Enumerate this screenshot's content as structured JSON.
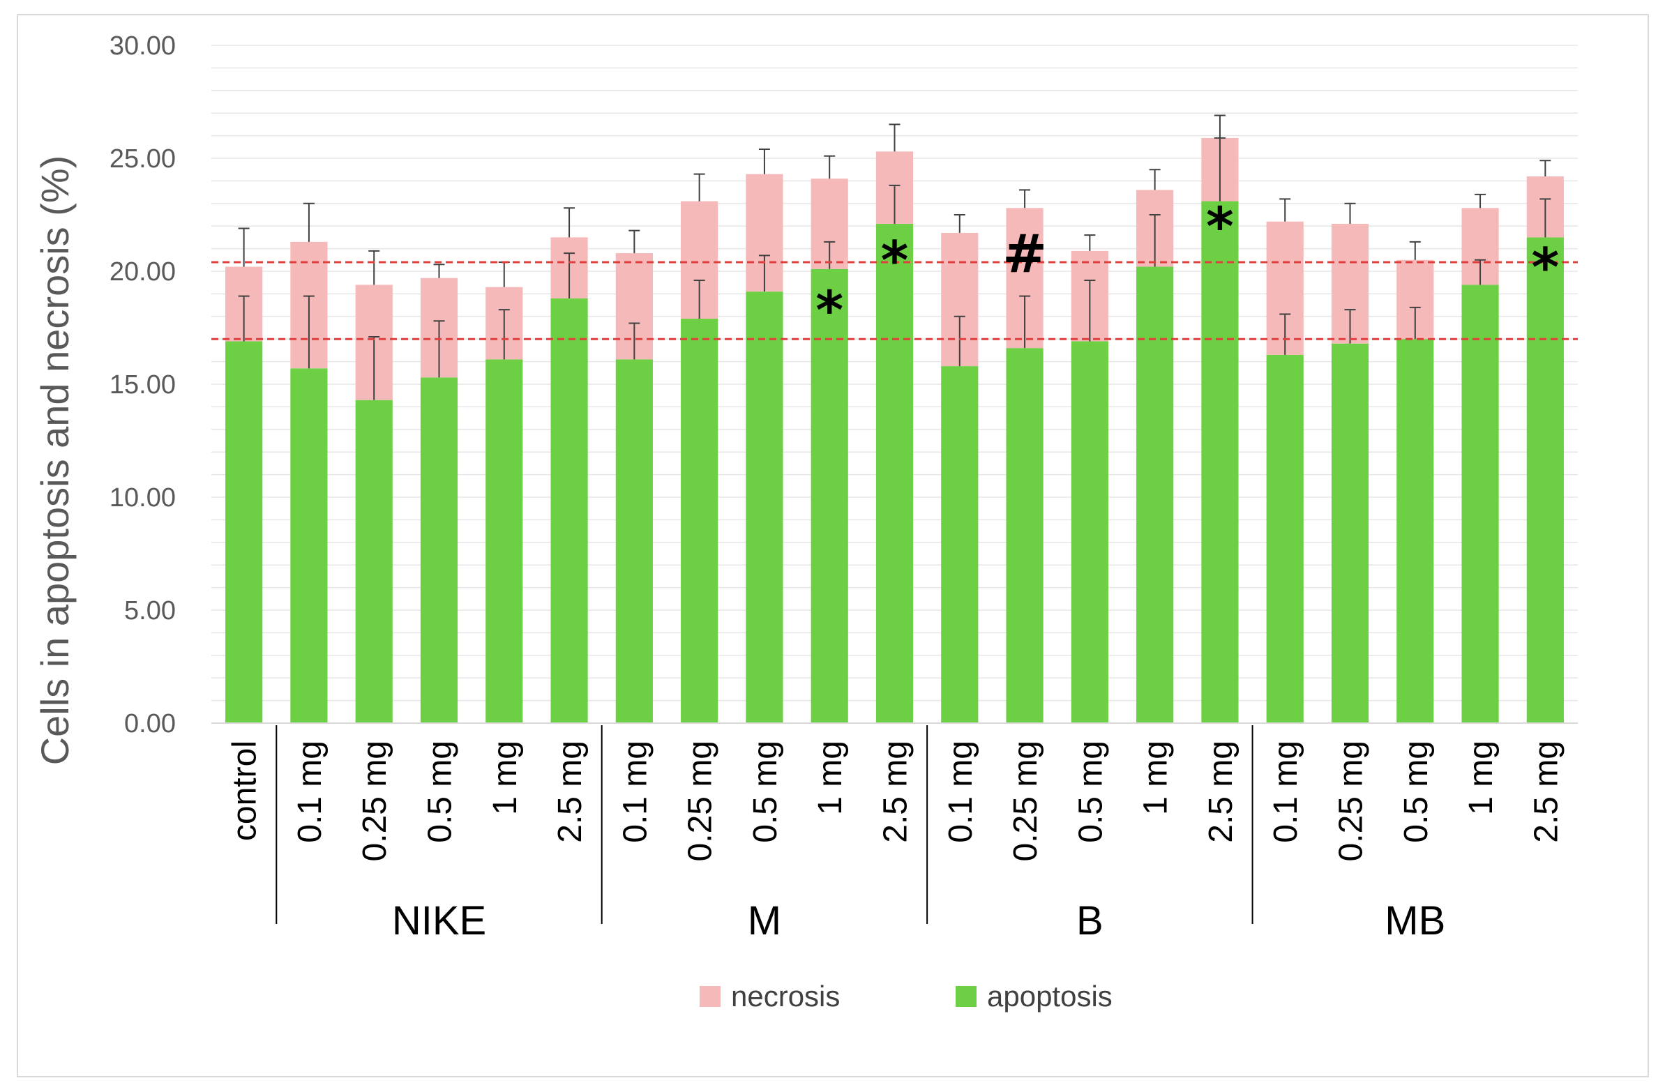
{
  "chart_data": {
    "type": "bar",
    "stacked": true,
    "title": "",
    "ylabel": "Cells in apoptosis and necrosis (%)",
    "xlabel": "",
    "ylim": [
      0,
      30
    ],
    "yticks": [
      "0.00",
      "5.00",
      "10.00",
      "15.00",
      "20.00",
      "25.00",
      "30.00"
    ],
    "grid": true,
    "legend_position": "bottom",
    "colors": {
      "apoptosis": "#6ccf44",
      "necrosis": "#f6b9b9",
      "reference": "#e0403c",
      "error": "#404040"
    },
    "categories": [
      "control",
      "0.1 mg",
      "0.25 mg",
      "0.5 mg",
      "1 mg",
      "2.5 mg",
      "0.1 mg",
      "0.25 mg",
      "0.5 mg",
      "1 mg",
      "2.5 mg",
      "0.1 mg",
      "0.25 mg",
      "0.5 mg",
      "1 mg",
      "2.5 mg",
      "0.1 mg",
      "0.25 mg",
      "0.5 mg",
      "1 mg",
      "2.5 mg"
    ],
    "groups": [
      {
        "label": "",
        "start": 0,
        "end": 0
      },
      {
        "label": "NIKE",
        "start": 1,
        "end": 5
      },
      {
        "label": "M",
        "start": 6,
        "end": 10
      },
      {
        "label": "B",
        "start": 11,
        "end": 15
      },
      {
        "label": "MB",
        "start": 16,
        "end": 20
      }
    ],
    "series": [
      {
        "name": "apoptosis",
        "values": [
          16.9,
          15.7,
          14.3,
          15.3,
          16.1,
          18.8,
          16.1,
          17.9,
          19.1,
          20.1,
          22.1,
          15.8,
          16.6,
          16.9,
          20.2,
          23.1,
          16.3,
          16.8,
          17.0,
          19.4,
          21.5
        ],
        "errors": [
          2.0,
          3.2,
          2.8,
          2.5,
          2.2,
          2.0,
          1.6,
          1.7,
          1.6,
          1.2,
          1.7,
          2.2,
          2.3,
          2.7,
          2.3,
          2.8,
          1.8,
          1.5,
          1.4,
          1.1,
          1.7
        ]
      },
      {
        "name": "necrosis",
        "values": [
          3.3,
          5.6,
          5.1,
          4.4,
          3.2,
          2.7,
          4.7,
          5.2,
          5.2,
          4.0,
          3.2,
          5.9,
          6.2,
          4.0,
          3.4,
          2.8,
          5.9,
          5.3,
          3.5,
          3.4,
          2.7
        ],
        "errors": [
          1.7,
          1.7,
          1.5,
          0.6,
          1.1,
          1.3,
          1.0,
          1.2,
          1.1,
          1.0,
          1.2,
          0.8,
          0.8,
          0.7,
          0.9,
          1.0,
          1.0,
          0.9,
          0.8,
          0.6,
          0.7
        ]
      }
    ],
    "reference_lines": [
      20.4,
      17.0
    ],
    "annotations": [
      {
        "category_index": 9,
        "symbol": "*",
        "at_value": 18.4
      },
      {
        "category_index": 10,
        "symbol": "*",
        "at_value": 20.6
      },
      {
        "category_index": 12,
        "symbol": "#",
        "at_value": 20.9
      },
      {
        "category_index": 15,
        "symbol": "*",
        "at_value": 22.1
      },
      {
        "category_index": 20,
        "symbol": "*",
        "at_value": 20.3
      }
    ]
  }
}
